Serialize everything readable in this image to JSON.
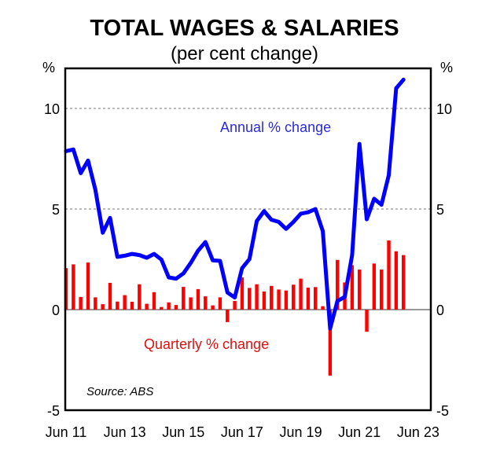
{
  "chart_data": {
    "type": "bar+line",
    "title": "TOTAL WAGES & SALARIES",
    "subtitle": "(per cent change)",
    "ylabel_left": "%",
    "ylabel_right": "%",
    "ylim": [
      -5,
      12
    ],
    "yticks": [
      "10",
      "5",
      "0",
      "-5"
    ],
    "ytick_values": [
      10,
      5,
      0,
      -5
    ],
    "xtick_labels": [
      "Jun 11",
      "Jun 13",
      "Jun 15",
      "Jun 17",
      "Jun 19",
      "Jun 21",
      "Jun 23"
    ],
    "xtick_quarter_index": [
      0,
      8,
      16,
      24,
      32,
      40,
      48
    ],
    "grid": "dotted at 5 and 10",
    "annotations": {
      "annual": "Annual % change",
      "quarterly": "Quarterly % change",
      "source": "Source: ABS"
    },
    "series": [
      {
        "name": "Quarterly % change",
        "type": "bar",
        "color": "#ff0000",
        "values": [
          2.06,
          2.25,
          0.63,
          2.34,
          0.61,
          0.27,
          1.33,
          0.4,
          0.72,
          0.39,
          1.26,
          0.29,
          0.87,
          0.13,
          0.36,
          0.23,
          1.13,
          0.61,
          1.02,
          0.66,
          0.21,
          0.61,
          -0.62,
          0.43,
          1.6,
          1.08,
          1.26,
          0.9,
          1.18,
          1.0,
          0.95,
          1.24,
          1.54,
          1.09,
          1.12,
          0.17,
          -3.28,
          2.47,
          1.35,
          2.21,
          1.99,
          -1.1,
          2.29,
          1.99,
          3.44,
          2.9,
          2.71
        ]
      },
      {
        "name": "Annual % change",
        "type": "line",
        "color": "#0000ff",
        "values": [
          7.88,
          7.96,
          6.78,
          7.41,
          5.96,
          3.82,
          4.56,
          2.62,
          2.68,
          2.77,
          2.71,
          2.58,
          2.77,
          2.49,
          1.6,
          1.54,
          1.8,
          2.32,
          2.93,
          3.36,
          2.45,
          2.42,
          0.85,
          0.6,
          2.06,
          2.51,
          4.4,
          4.9,
          4.47,
          4.36,
          4.01,
          4.36,
          4.77,
          4.84,
          5.0,
          3.9,
          -0.94,
          0.43,
          0.63,
          2.71,
          8.24,
          4.49,
          5.51,
          5.21,
          6.68,
          11.0,
          11.43
        ]
      }
    ]
  }
}
